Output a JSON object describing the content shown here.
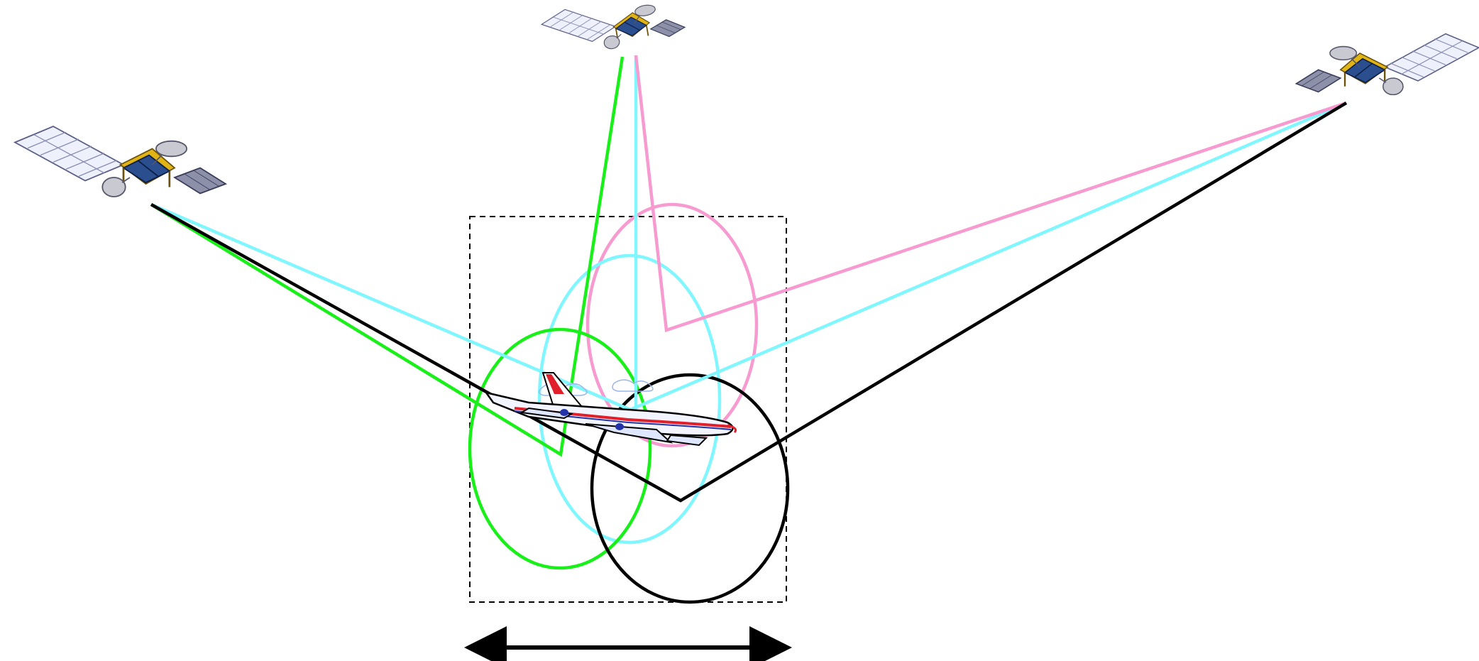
{
  "diagram": {
    "colors": {
      "green": "#19ef19",
      "cyan": "#80f6ff",
      "pink": "#f79ad0",
      "black": "#000000",
      "panel": "#2a4e8e",
      "solar": "#eef0fb",
      "gold": "#e0b316",
      "dish": "#c9c9d2",
      "plane_body": "#f2f5ff",
      "plane_red": "#e0202b",
      "plane_blue": "#2233aa"
    },
    "icons": {
      "satellite": "satellite-icon",
      "aircraft": "airplane-icon"
    }
  }
}
